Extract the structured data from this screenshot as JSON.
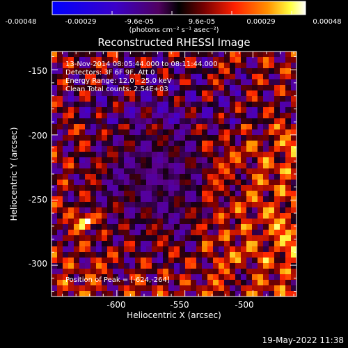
{
  "colorbar": {
    "tick_labels": [
      "-0.00048",
      "-0.00029",
      "-9.6e-05",
      "9.6e-05",
      "0.00029",
      "0.00048"
    ],
    "unit": "(photons cm⁻² s⁻¹ asec⁻²)"
  },
  "plot": {
    "title": "Reconstructed RHESSI Image",
    "info_lines": [
      "13-Nov-2014 08:05:44.000 to 08:11:44.000",
      "Detectors: 3F 6F 9F, Att 0",
      "Energy Range: 12.0 - 25.0 keV",
      "Clean     Total counts: 2.54E+03"
    ],
    "peak_label": "Position of Peak = [-624,-264]"
  },
  "chart_data": {
    "type": "heatmap",
    "title": "Reconstructed RHESSI Image",
    "xlabel": "Heliocentric X (arcsec)",
    "ylabel": "Heliocentric Y (arcsec)",
    "xticks": [
      -600,
      -550,
      -500
    ],
    "yticks": [
      -150,
      -200,
      -250,
      -300
    ],
    "xlim": [
      -648,
      -468
    ],
    "ylim": [
      -324,
      -136
    ],
    "color_scale": {
      "min": -0.00048,
      "max": 0.00048,
      "colormap": "RHESSI blue-purple-red-yellow-white"
    },
    "peak_position": [
      -624,
      -264
    ]
  },
  "footer": {
    "timestamp": "19-May-2022 11:38"
  }
}
